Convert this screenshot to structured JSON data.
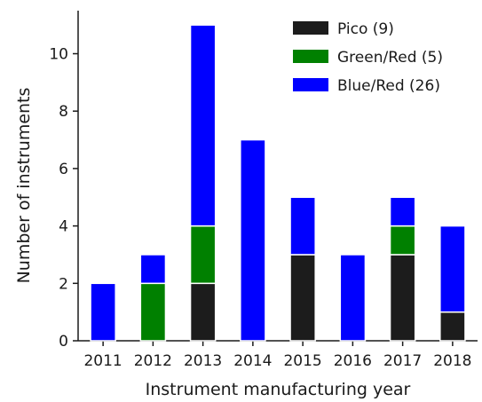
{
  "chart_data": {
    "type": "bar",
    "stacked": true,
    "categories": [
      "2011",
      "2012",
      "2013",
      "2014",
      "2015",
      "2016",
      "2017",
      "2018"
    ],
    "series": [
      {
        "name": "Pico (9)",
        "values": [
          0,
          0,
          2,
          0,
          3,
          0,
          3,
          1
        ],
        "color": "#1c1c1c"
      },
      {
        "name": "Green/Red (5)",
        "values": [
          0,
          2,
          2,
          0,
          0,
          0,
          1,
          0
        ],
        "color": "#008000"
      },
      {
        "name": "Blue/Red (26)",
        "values": [
          2,
          1,
          7,
          7,
          2,
          3,
          1,
          3
        ],
        "color": "#0000ff"
      }
    ],
    "xlabel": "Instrument manufacturing year",
    "ylabel": "Number of instruments",
    "ylim": [
      0,
      11.5
    ],
    "yticks": [
      0,
      2,
      4,
      6,
      8,
      10
    ],
    "grid": false,
    "legend_position": "top-right"
  }
}
